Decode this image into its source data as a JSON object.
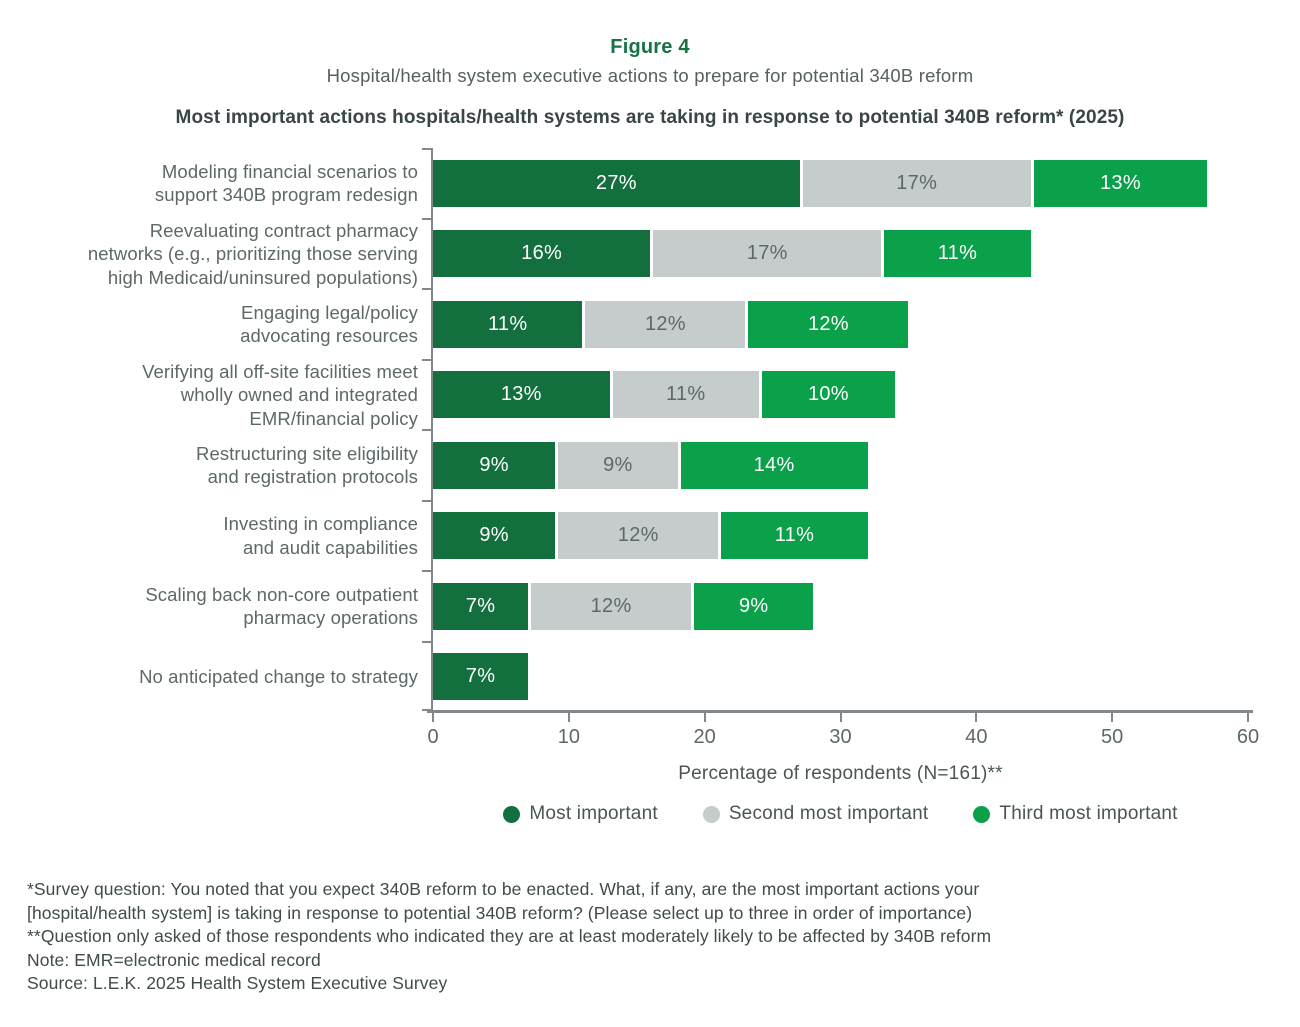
{
  "header": {
    "figure_label": "Figure 4",
    "subtitle": "Hospital/health system executive actions to prepare for potential 340B reform",
    "chart_heading": "Most important actions hospitals/health systems are taking in response to potential 340B reform* (2025)"
  },
  "chart_data": {
    "type": "bar",
    "orientation": "horizontal",
    "stacked": true,
    "title": "Most important actions hospitals/health systems are taking in response to potential 340B reform* (2025)",
    "xlabel": "Percentage of respondents (N=161)**",
    "ylabel": "",
    "xlim": [
      0,
      60
    ],
    "x_ticks": [
      0,
      10,
      20,
      30,
      40,
      50,
      60
    ],
    "grid": false,
    "legend_position": "bottom",
    "value_suffix": "%",
    "categories": [
      "Modeling financial scenarios to support 340B program redesign",
      "Reevaluating contract pharmacy networks (e.g., prioritizing those serving high Medicaid/uninsured populations)",
      "Engaging legal/policy advocating resources",
      "Verifying all off-site facilities meet wholly owned and integrated EMR/financial policy",
      "Restructuring site eligibility and registration protocols",
      "Investing in compliance and audit capabilities",
      "Scaling back non-core outpatient pharmacy operations",
      "No anticipated change to strategy"
    ],
    "category_lines": [
      [
        "Modeling financial scenarios to",
        "support 340B program redesign"
      ],
      [
        "Reevaluating contract pharmacy",
        "networks (e.g., prioritizing those serving",
        "high Medicaid/uninsured populations)"
      ],
      [
        "Engaging legal/policy",
        "advocating resources"
      ],
      [
        "Verifying all off-site facilities meet",
        "wholly owned and integrated",
        "EMR/financial policy"
      ],
      [
        "Restructuring site eligibility",
        "and registration protocols"
      ],
      [
        "Investing in compliance",
        "and audit capabilities"
      ],
      [
        "Scaling back non-core outpatient",
        "pharmacy operations"
      ],
      [
        "No anticipated change to strategy"
      ]
    ],
    "series": [
      {
        "name": "Most important",
        "color": "#136f3e",
        "label_color": "#ffffff",
        "values": [
          27,
          16,
          11,
          13,
          9,
          9,
          7,
          7
        ]
      },
      {
        "name": "Second most important",
        "color": "#c6cbcb",
        "label_color": "#5d6868",
        "values": [
          17,
          17,
          12,
          11,
          9,
          12,
          12,
          null
        ]
      },
      {
        "name": "Third most important",
        "color": "#0ba04a",
        "label_color": "#ffffff",
        "values": [
          13,
          11,
          12,
          10,
          14,
          11,
          9,
          null
        ]
      }
    ]
  },
  "legend": {
    "items": [
      {
        "label": "Most important",
        "color": "#136f3e"
      },
      {
        "label": "Second most important",
        "color": "#c6cbcb"
      },
      {
        "label": "Third most important",
        "color": "#0ba04a"
      }
    ]
  },
  "axis": {
    "x_label": "Percentage of respondents (N=161)**",
    "color": "#82888c"
  },
  "footnotes": {
    "lines": [
      "*Survey question: You noted that you expect 340B reform to be enacted. What, if any, are the most important actions your",
      "[hospital/health system] is taking in response to potential 340B reform? (Please select up to three in order of importance)",
      "**Question only asked of those respondents who indicated they are at least moderately likely to be affected by 340B reform",
      "Note: EMR=electronic medical record",
      "Source: L.E.K. 2025 Health System Executive Survey"
    ]
  }
}
